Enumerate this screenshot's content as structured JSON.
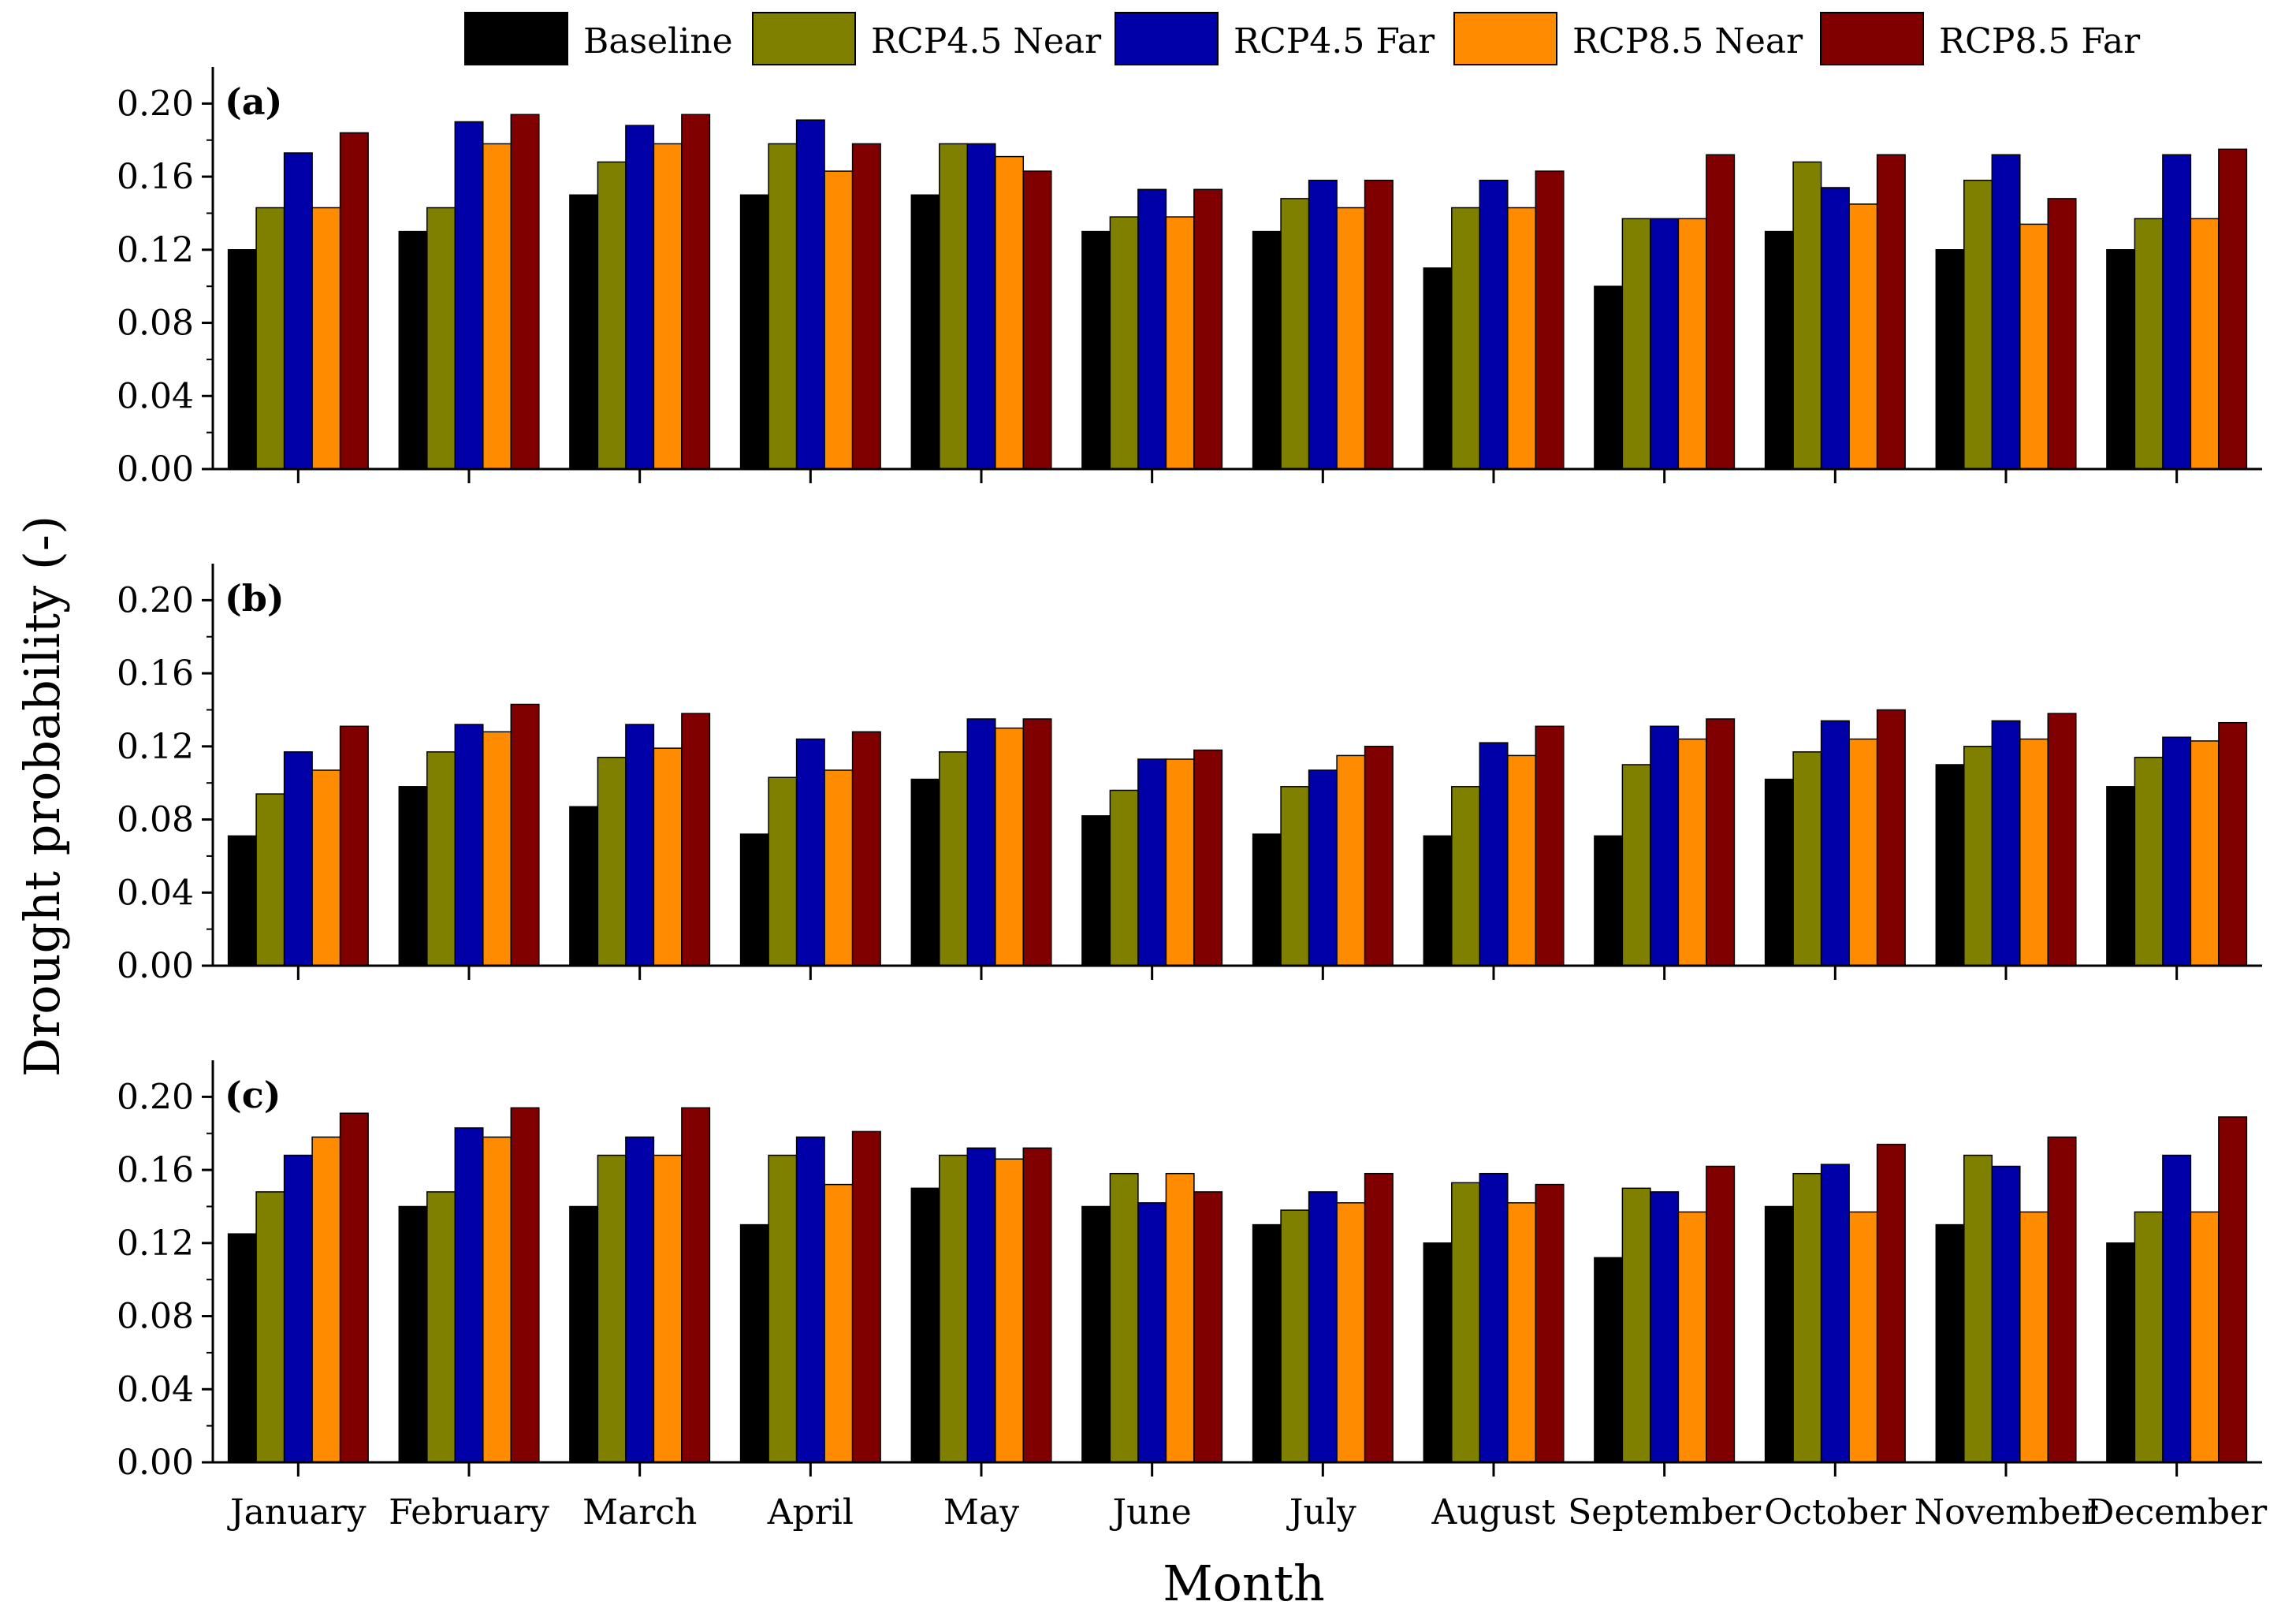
{
  "chart_data": {
    "type": "bar",
    "ylabel": "Drought probability (-)",
    "xlabel": "Month",
    "ylim": [
      0,
      0.22
    ],
    "yticks": [
      "0.00",
      "0.04",
      "0.08",
      "0.12",
      "0.16",
      "0.20"
    ],
    "legend_position": "top",
    "categories": [
      "January",
      "February",
      "March",
      "April",
      "May",
      "June",
      "July",
      "August",
      "September",
      "October",
      "November",
      "December"
    ],
    "series": [
      {
        "name": "Baseline",
        "color": "#000000"
      },
      {
        "name": "RCP4.5 Near",
        "color": "#808000"
      },
      {
        "name": "RCP4.5 Far",
        "color": "#0000a8"
      },
      {
        "name": "RCP8.5 Near",
        "color": "#ff8c00"
      },
      {
        "name": "RCP8.5 Far",
        "color": "#800000"
      }
    ],
    "panels": [
      {
        "label": "(a)",
        "values": {
          "Baseline": [
            0.12,
            0.13,
            0.15,
            0.15,
            0.15,
            0.13,
            0.13,
            0.11,
            0.1,
            0.13,
            0.12,
            0.12
          ],
          "RCP4.5 Near": [
            0.143,
            0.143,
            0.168,
            0.178,
            0.178,
            0.138,
            0.148,
            0.143,
            0.137,
            0.168,
            0.158,
            0.137
          ],
          "RCP4.5 Far": [
            0.173,
            0.19,
            0.188,
            0.191,
            0.178,
            0.153,
            0.158,
            0.158,
            0.137,
            0.154,
            0.172,
            0.172
          ],
          "RCP8.5 Near": [
            0.143,
            0.178,
            0.178,
            0.163,
            0.171,
            0.138,
            0.143,
            0.143,
            0.137,
            0.145,
            0.134,
            0.137
          ],
          "RCP8.5 Far": [
            0.184,
            0.194,
            0.194,
            0.178,
            0.163,
            0.153,
            0.158,
            0.163,
            0.172,
            0.172,
            0.148,
            0.175
          ]
        }
      },
      {
        "label": "(b)",
        "values": {
          "Baseline": [
            0.071,
            0.098,
            0.087,
            0.072,
            0.102,
            0.082,
            0.072,
            0.071,
            0.071,
            0.102,
            0.11,
            0.098
          ],
          "RCP4.5 Near": [
            0.094,
            0.117,
            0.114,
            0.103,
            0.117,
            0.096,
            0.098,
            0.098,
            0.11,
            0.117,
            0.12,
            0.114
          ],
          "RCP4.5 Far": [
            0.117,
            0.132,
            0.132,
            0.124,
            0.135,
            0.113,
            0.107,
            0.122,
            0.131,
            0.134,
            0.134,
            0.125
          ],
          "RCP8.5 Near": [
            0.107,
            0.128,
            0.119,
            0.107,
            0.13,
            0.113,
            0.115,
            0.115,
            0.124,
            0.124,
            0.124,
            0.123
          ],
          "RCP8.5 Far": [
            0.131,
            0.143,
            0.138,
            0.128,
            0.135,
            0.118,
            0.12,
            0.131,
            0.135,
            0.14,
            0.138,
            0.133
          ]
        }
      },
      {
        "label": "(c)",
        "values": {
          "Baseline": [
            0.125,
            0.14,
            0.14,
            0.13,
            0.15,
            0.14,
            0.13,
            0.12,
            0.112,
            0.14,
            0.13,
            0.12
          ],
          "RCP4.5 Near": [
            0.148,
            0.148,
            0.168,
            0.168,
            0.168,
            0.158,
            0.138,
            0.153,
            0.15,
            0.158,
            0.168,
            0.137
          ],
          "RCP4.5 Far": [
            0.168,
            0.183,
            0.178,
            0.178,
            0.172,
            0.142,
            0.148,
            0.158,
            0.148,
            0.163,
            0.162,
            0.168
          ],
          "RCP8.5 Near": [
            0.178,
            0.178,
            0.168,
            0.152,
            0.166,
            0.158,
            0.142,
            0.142,
            0.137,
            0.137,
            0.137,
            0.137
          ],
          "RCP8.5 Far": [
            0.191,
            0.194,
            0.194,
            0.181,
            0.172,
            0.148,
            0.158,
            0.152,
            0.162,
            0.174,
            0.178,
            0.189
          ]
        }
      }
    ]
  }
}
